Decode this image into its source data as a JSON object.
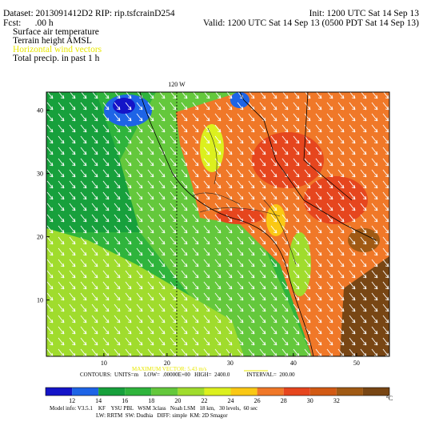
{
  "header": {
    "dataset": "Dataset: 2013091412D2   RIP: rip.tsfcrainD254",
    "init": "Init: 1200 UTC Sat 14 Sep 13",
    "fcst": "Fcst:      .00 h",
    "valid": "Valid: 1200 UTC Sat 14 Sep 13 (0500 PDT Sat 14 Sep 13)",
    "fields": [
      "Surface air temperature",
      "Terrain height AMSL",
      "Horizontal wind vectors",
      "Total precip. in past 1 h"
    ]
  },
  "map": {
    "meridian_label": "120 W",
    "x_labels": [
      10,
      20,
      30,
      40,
      50
    ],
    "y_labels": [
      10,
      20,
      30,
      40
    ]
  },
  "contour_info": "CONTOURS:  UNITS=m    LOW=  .00000E+00   HIGH=  2400.0            INTERVAL=  200.00",
  "max_vector": "MAXIMUM VECTOR:  5.43 m/s",
  "colorbar": {
    "colors": [
      "#1414c8",
      "#1e64e6",
      "#17a03c",
      "#2fb43c",
      "#64c83c",
      "#a0dc2d",
      "#dcf01e",
      "#fac814",
      "#f07828",
      "#e6461e",
      "#d25a14",
      "#a05a14",
      "#784614"
    ],
    "labels": [
      12,
      14,
      16,
      18,
      20,
      22,
      24,
      26,
      28,
      30,
      32
    ],
    "unit": "°C"
  },
  "footer": [
    "Model info: V3.5.1    KF    YSU PBL   WSM 3class   Noah LSM   18 km,   30 levels,  60 sec",
    "LW: RRTM  SW: Dudhia   DIFF: simple  KM: 2D Smagor"
  ]
}
